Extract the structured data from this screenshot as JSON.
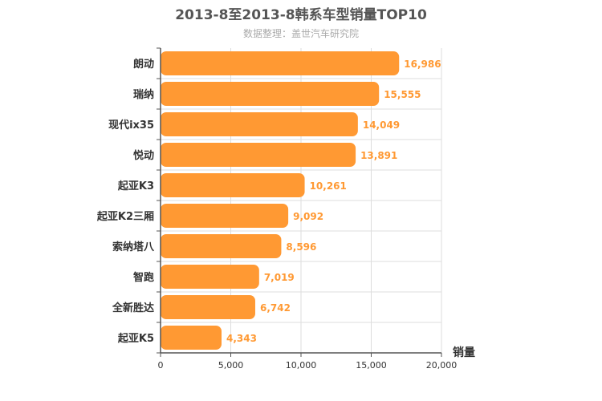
{
  "chart_data": {
    "type": "bar",
    "orientation": "horizontal",
    "title": "2013-8至2013-8韩系车型销量TOP10",
    "subtitle": "数据整理：盖世汽车研究院",
    "categories": [
      "朗动",
      "瑞纳",
      "现代ix35",
      "悦动",
      "起亚K3",
      "起亚K2三厢",
      "索纳塔八",
      "智跑",
      "全新胜达",
      "起亚K5"
    ],
    "values": [
      16986,
      15555,
      14049,
      13891,
      10261,
      9092,
      8596,
      7019,
      6742,
      4343
    ],
    "value_labels": [
      "16,986",
      "15,555",
      "14,049",
      "13,891",
      "10,261",
      "9,092",
      "8,596",
      "7,019",
      "6,742",
      "4,343"
    ],
    "xlabel": "销量",
    "ylabel": "",
    "xlim": [
      0,
      20000
    ],
    "ticks": [
      0,
      5000,
      10000,
      15000,
      20000
    ],
    "tick_labels": [
      "0",
      "5,000",
      "10,000",
      "15,000",
      "20,000"
    ],
    "bar_color": "#ff9933",
    "grid": true
  }
}
